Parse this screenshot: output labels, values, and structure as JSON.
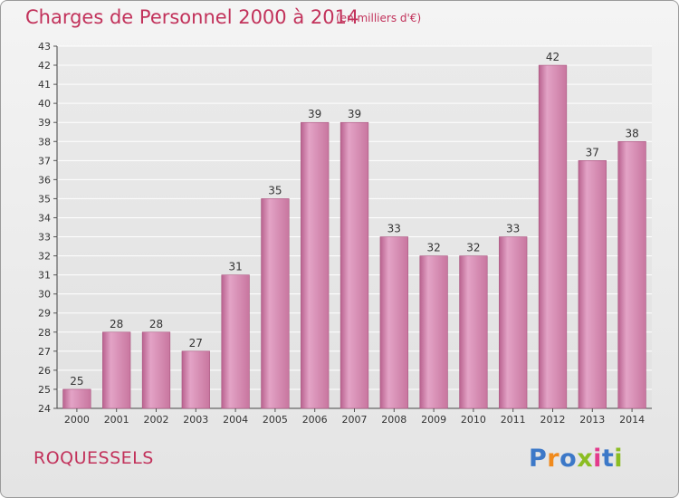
{
  "chart_data": {
    "type": "bar",
    "title": "Charges de Personnel 2000 à 2014",
    "subtitle": "(en milliers d'€)",
    "categories": [
      "2000",
      "2001",
      "2002",
      "2003",
      "2004",
      "2005",
      "2006",
      "2007",
      "2008",
      "2009",
      "2010",
      "2011",
      "2012",
      "2013",
      "2014"
    ],
    "values": [
      25,
      28,
      28,
      27,
      31,
      35,
      39,
      39,
      33,
      32,
      32,
      33,
      42,
      37,
      38
    ],
    "ylim": [
      24,
      43
    ],
    "yticks": [
      24,
      25,
      26,
      27,
      28,
      29,
      30,
      31,
      32,
      33,
      34,
      35,
      36,
      37,
      38,
      39,
      40,
      41,
      42,
      43
    ],
    "grid": true,
    "bar_color": "#d98ab2"
  },
  "footer": {
    "town": "ROQUESSELS",
    "logo": "Proxiti"
  }
}
